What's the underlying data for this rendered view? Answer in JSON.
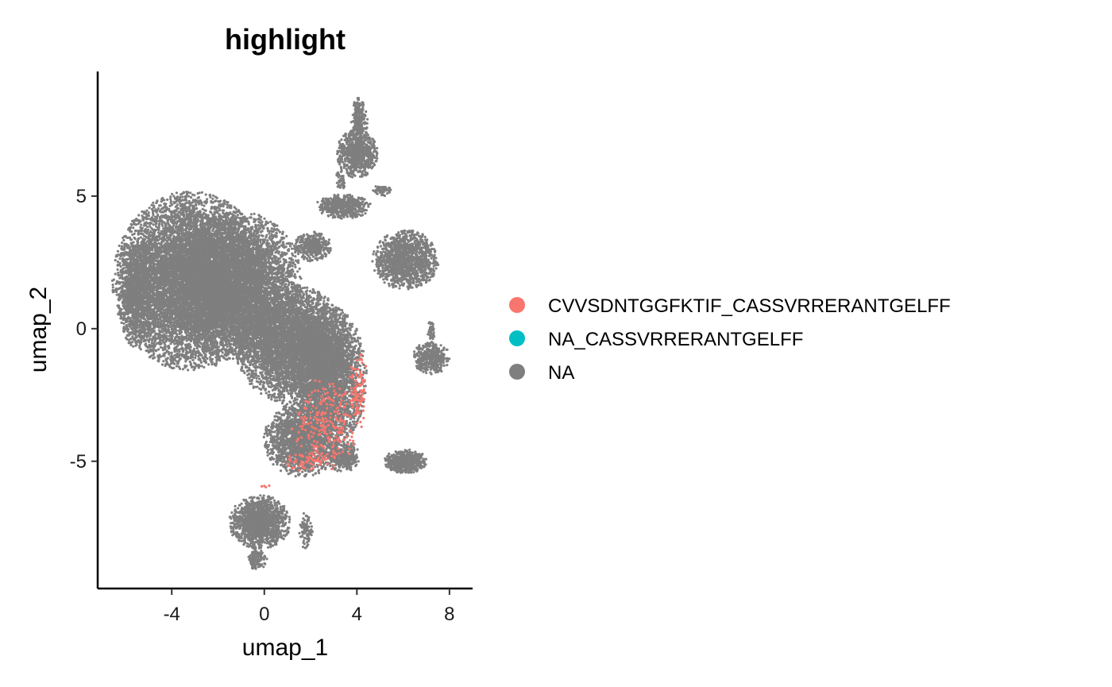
{
  "chart_data": {
    "type": "scatter",
    "title": "highlight",
    "xlabel": "umap_1",
    "ylabel": "umap_2",
    "xlim": [
      -7.2,
      9.0
    ],
    "ylim": [
      -9.8,
      9.7
    ],
    "xticks": [
      -4,
      0,
      4,
      8
    ],
    "xtick_labels": [
      "-4",
      "0",
      "4",
      "8"
    ],
    "yticks": [
      -5,
      0,
      5
    ],
    "ytick_labels": [
      "-5",
      "0",
      "5"
    ],
    "grid": false,
    "legend_position": "right",
    "series": [
      {
        "name": "CVVSDNTGGFKTIF_CASSVRRERANTGELFF",
        "color": "#F8766D",
        "clusters": [
          {
            "cx": 2.6,
            "cy": -3.6,
            "rx": 1.4,
            "ry": 1.7,
            "n": 220
          },
          {
            "cx": 4.1,
            "cy": -2.3,
            "rx": 0.4,
            "ry": 1.5,
            "n": 90
          },
          {
            "cx": 1.9,
            "cy": -5.0,
            "rx": 1.2,
            "ry": 0.4,
            "n": 60
          },
          {
            "cx": 0.1,
            "cy": -6.0,
            "rx": 0.3,
            "ry": 0.3,
            "n": 4
          }
        ]
      },
      {
        "name": "NA_CASSVRRERANTGELFF",
        "color": "#00BFC4",
        "clusters": []
      },
      {
        "name": "NA",
        "color": "#7F7F7F",
        "clusters": [
          {
            "cx": -3.2,
            "cy": 1.8,
            "rx": 3.3,
            "ry": 3.3,
            "n": 9000
          },
          {
            "cx": -1.0,
            "cy": 1.6,
            "rx": 2.6,
            "ry": 2.8,
            "n": 5000
          },
          {
            "cx": 1.2,
            "cy": -0.6,
            "rx": 2.4,
            "ry": 2.2,
            "n": 4500
          },
          {
            "cx": 2.8,
            "cy": -1.8,
            "rx": 1.6,
            "ry": 2.6,
            "n": 3000
          },
          {
            "cx": 1.6,
            "cy": -4.2,
            "rx": 1.6,
            "ry": 1.4,
            "n": 1800
          },
          {
            "cx": 3.4,
            "cy": -4.8,
            "rx": 0.7,
            "ry": 0.6,
            "n": 350
          },
          {
            "cx": -5.5,
            "cy": 1.3,
            "rx": 0.8,
            "ry": 2.0,
            "n": 1000
          },
          {
            "cx": -0.2,
            "cy": -7.3,
            "rx": 1.3,
            "ry": 1.0,
            "n": 1400
          },
          {
            "cx": -0.3,
            "cy": -8.7,
            "rx": 0.4,
            "ry": 0.4,
            "n": 120
          },
          {
            "cx": 1.8,
            "cy": -7.6,
            "rx": 0.3,
            "ry": 0.7,
            "n": 90
          },
          {
            "cx": 6.1,
            "cy": -5.0,
            "rx": 0.9,
            "ry": 0.45,
            "n": 550
          },
          {
            "cx": 6.1,
            "cy": 2.6,
            "rx": 1.4,
            "ry": 1.1,
            "n": 1300
          },
          {
            "cx": 7.2,
            "cy": -1.1,
            "rx": 0.8,
            "ry": 0.6,
            "n": 400
          },
          {
            "cx": 7.2,
            "cy": -0.1,
            "rx": 0.15,
            "ry": 0.4,
            "n": 40
          },
          {
            "cx": 2.1,
            "cy": 3.1,
            "rx": 0.8,
            "ry": 0.55,
            "n": 380
          },
          {
            "cx": 3.4,
            "cy": 4.6,
            "rx": 1.2,
            "ry": 0.45,
            "n": 500
          },
          {
            "cx": 4.0,
            "cy": 6.6,
            "rx": 0.9,
            "ry": 0.9,
            "n": 700
          },
          {
            "cx": 4.1,
            "cy": 7.8,
            "rx": 0.35,
            "ry": 0.9,
            "n": 250
          },
          {
            "cx": 5.1,
            "cy": 5.2,
            "rx": 0.5,
            "ry": 0.2,
            "n": 70
          },
          {
            "cx": 3.3,
            "cy": 5.6,
            "rx": 0.2,
            "ry": 0.4,
            "n": 40
          }
        ]
      }
    ]
  }
}
